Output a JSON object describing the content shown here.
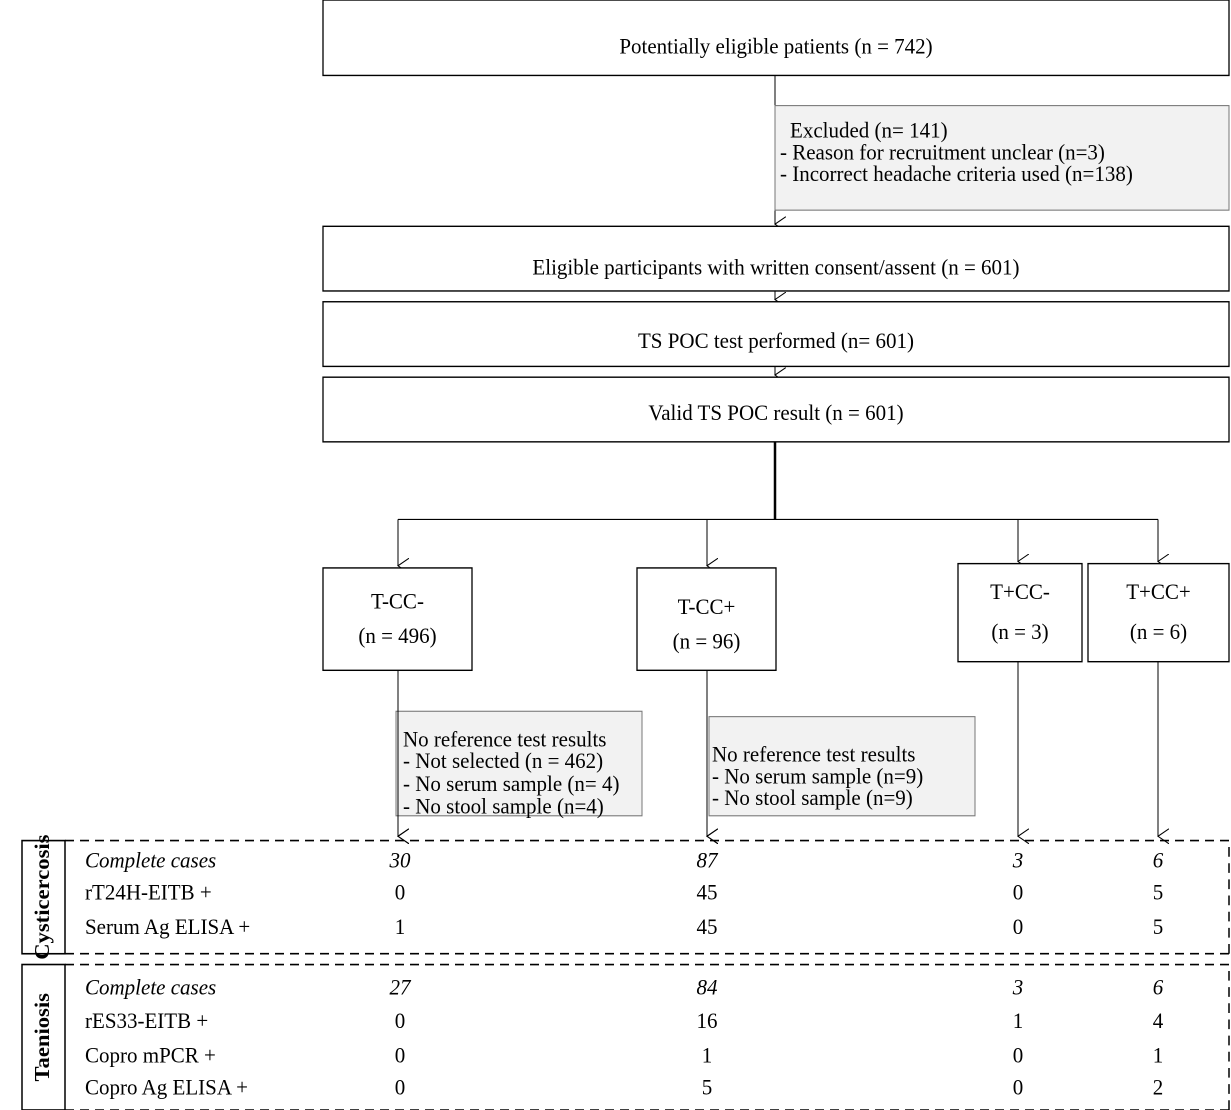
{
  "nodes": [
    {
      "label": "Potentially eligible patients (n = 742)"
    },
    {
      "label": "Eligible participants with written consent/assent (n = 601)"
    },
    {
      "label": "TS POC test performed (n= 601)"
    },
    {
      "label": "Valid TS POC result (n = 601)"
    }
  ],
  "excluded": {
    "lines": [
      "Excluded (n= 141)",
      "- Reason for recruitment unclear (n=3)",
      "- Incorrect headache criteria used (n=138)"
    ]
  },
  "groups": [
    {
      "lines": [
        "T-CC-",
        "(n = 496)"
      ]
    },
    {
      "lines": [
        "T-CC+",
        "(n = 96)"
      ]
    },
    {
      "lines": [
        "T+CC-",
        "(n = 3)"
      ]
    },
    {
      "lines": [
        "T+CC+",
        "(n = 6)"
      ]
    }
  ],
  "group_exclusions": [
    {
      "lines": [
        "No reference test results",
        "- Not selected (n = 462)",
        "- No serum sample (n= 4)",
        "- No stool sample (n=4)"
      ]
    },
    {
      "lines": [
        "No reference test results",
        "- No serum sample (n=9)",
        "- No stool sample (n=9)"
      ]
    }
  ],
  "tables": [
    {
      "title": "Cysticercosis",
      "rows": [
        [
          "Complete cases",
          30,
          87,
          3,
          6
        ],
        [
          "rT24H-EITB +",
          0,
          45,
          0,
          5
        ],
        [
          "Serum Ag ELISA +",
          1,
          45,
          0,
          5
        ]
      ]
    },
    {
      "title": "Taeniosis",
      "rows": [
        [
          "Complete cases",
          27,
          84,
          3,
          6
        ],
        [
          "rES33-EITB +",
          0,
          16,
          1,
          4
        ],
        [
          "Copro mPCR +",
          0,
          1,
          0,
          1
        ],
        [
          "Copro Ag ELISA +",
          0,
          5,
          0,
          2
        ]
      ]
    }
  ]
}
